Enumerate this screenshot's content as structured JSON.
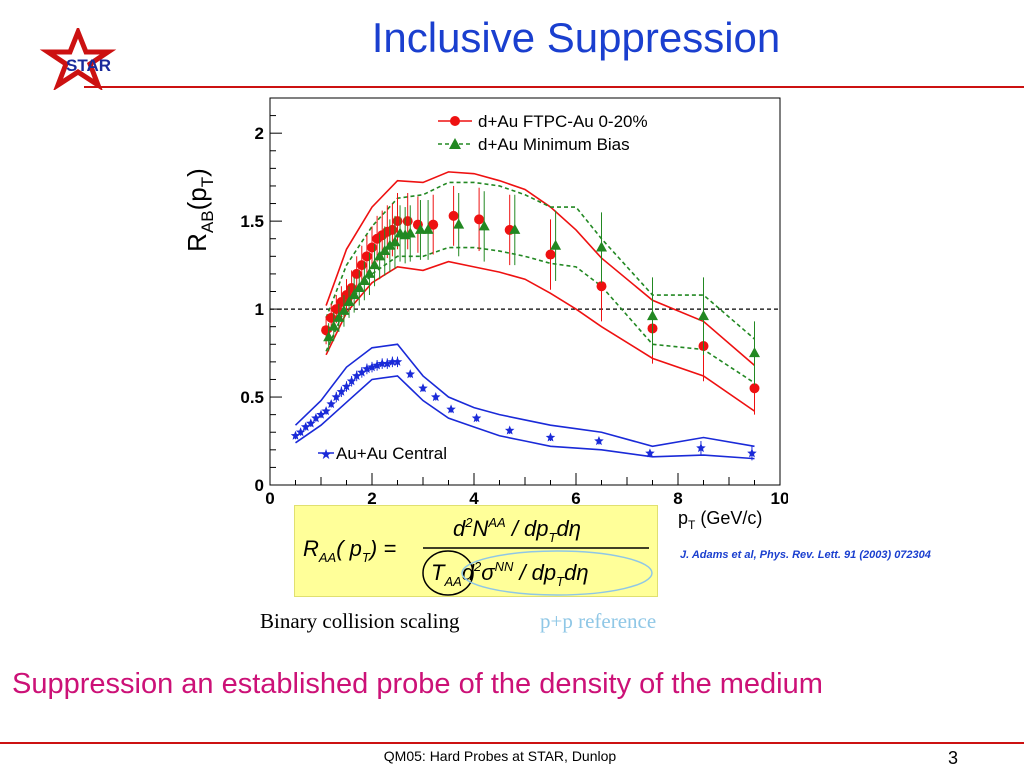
{
  "slide": {
    "title": "Inclusive Suppression",
    "logo_text": "STAR",
    "statement": "Suppression an established probe of the density of the medium",
    "binary_label": "Binary collision scaling",
    "pp_reference": "p+p reference",
    "citation": "J. Adams et al, Phys. Rev. Lett. 91 (2003) 072304",
    "footer": "QM05: Hard Probes at STAR, Dunlop",
    "page_number": "3"
  },
  "formula": {
    "lhs": "R",
    "lhs_sub": "AA",
    "lhs_arg": "( p",
    "lhs_arg_sub": "T",
    "lhs_close": ") =",
    "num_text": "d",
    "num_sup": "2",
    "num_n": "N",
    "num_n_sup": "AA",
    "num_rest": " / dp",
    "num_rest_sub": "T",
    "num_end": "dη",
    "den_t": "T",
    "den_t_sub": "AA",
    "den_d": "d",
    "den_d_sup": "2",
    "den_sigma": "σ",
    "den_sigma_sup": "NN",
    "den_rest": " / dp",
    "den_rest_sub": "T",
    "den_end": "dη"
  },
  "colors": {
    "title": "#1a3fcf",
    "accent_red": "#cc1111",
    "statement": "#cc1177",
    "dau_central": "#ee1111",
    "dau_minbias": "#228822",
    "auau": "#1a2ad8",
    "pp_reference": "#8fc7e6",
    "formula_bg": "#ffff99"
  },
  "chart_data": {
    "type": "scatter",
    "xlabel": "p",
    "xlabel_sub": "T",
    "xlabel_unit": " (GeV/c)",
    "ylabel": "R",
    "ylabel_sub": "AB",
    "ylabel_arg": "(p",
    "ylabel_arg_sub": "T",
    "ylabel_close": ")",
    "xlim": [
      0,
      10
    ],
    "ylim": [
      0,
      2.2
    ],
    "xticks": [
      "0",
      "2",
      "4",
      "6",
      "8",
      "10"
    ],
    "yticks": [
      "0",
      "0.5",
      "1",
      "1.5",
      "2"
    ],
    "reference_line": 1,
    "series": [
      {
        "name": "d+Au FTPC-Au 0-20%",
        "marker": "circle",
        "color": "#ee1111",
        "x": [
          1.1,
          1.2,
          1.3,
          1.4,
          1.5,
          1.6,
          1.7,
          1.8,
          1.9,
          2.0,
          2.1,
          2.2,
          2.3,
          2.4,
          2.5,
          2.7,
          2.9,
          3.2,
          3.6,
          4.1,
          4.7,
          5.5,
          6.5,
          7.5,
          8.5,
          9.5
        ],
        "y": [
          0.88,
          0.95,
          1.0,
          1.04,
          1.08,
          1.12,
          1.2,
          1.25,
          1.3,
          1.35,
          1.4,
          1.42,
          1.44,
          1.45,
          1.5,
          1.5,
          1.48,
          1.48,
          1.53,
          1.51,
          1.45,
          1.31,
          1.13,
          0.89,
          0.79,
          0.55
        ],
        "err": [
          0.08,
          0.08,
          0.08,
          0.09,
          0.09,
          0.1,
          0.1,
          0.11,
          0.12,
          0.12,
          0.13,
          0.14,
          0.15,
          0.15,
          0.16,
          0.16,
          0.16,
          0.17,
          0.17,
          0.18,
          0.2,
          0.2,
          0.2,
          0.2,
          0.2,
          0.15
        ]
      },
      {
        "name": "d+Au Minimum Bias",
        "marker": "triangle",
        "color": "#228822",
        "x": [
          1.15,
          1.25,
          1.35,
          1.45,
          1.55,
          1.65,
          1.75,
          1.85,
          1.95,
          2.05,
          2.15,
          2.25,
          2.35,
          2.45,
          2.55,
          2.65,
          2.75,
          2.95,
          3.1,
          3.7,
          4.2,
          4.8,
          5.6,
          6.5,
          7.5,
          8.5,
          9.5
        ],
        "y": [
          0.84,
          0.9,
          0.95,
          0.99,
          1.04,
          1.08,
          1.12,
          1.16,
          1.2,
          1.25,
          1.3,
          1.33,
          1.36,
          1.38,
          1.43,
          1.42,
          1.43,
          1.45,
          1.45,
          1.48,
          1.47,
          1.45,
          1.36,
          1.35,
          0.96,
          0.96,
          0.75
        ],
        "err": [
          0.08,
          0.08,
          0.08,
          0.09,
          0.09,
          0.1,
          0.1,
          0.11,
          0.12,
          0.12,
          0.13,
          0.14,
          0.15,
          0.15,
          0.16,
          0.16,
          0.16,
          0.17,
          0.17,
          0.18,
          0.2,
          0.2,
          0.2,
          0.2,
          0.22,
          0.22,
          0.18
        ]
      },
      {
        "name": "Au+Au Central",
        "marker": "star",
        "color": "#1a2ad8",
        "x": [
          0.5,
          0.6,
          0.7,
          0.8,
          0.9,
          1.0,
          1.1,
          1.2,
          1.3,
          1.4,
          1.5,
          1.6,
          1.7,
          1.8,
          1.9,
          2.0,
          2.1,
          2.2,
          2.3,
          2.4,
          2.5,
          2.75,
          3.0,
          3.25,
          3.55,
          4.05,
          4.7,
          5.5,
          6.45,
          7.45,
          8.45,
          9.45
        ],
        "y": [
          0.28,
          0.3,
          0.33,
          0.35,
          0.38,
          0.4,
          0.42,
          0.46,
          0.5,
          0.53,
          0.56,
          0.59,
          0.62,
          0.64,
          0.66,
          0.67,
          0.68,
          0.69,
          0.69,
          0.7,
          0.7,
          0.63,
          0.55,
          0.5,
          0.43,
          0.38,
          0.31,
          0.27,
          0.25,
          0.18,
          0.21,
          0.18
        ],
        "err": [
          0.02,
          0.02,
          0.02,
          0.02,
          0.02,
          0.02,
          0.02,
          0.02,
          0.03,
          0.03,
          0.03,
          0.03,
          0.03,
          0.03,
          0.03,
          0.03,
          0.03,
          0.03,
          0.03,
          0.03,
          0.03,
          0.02,
          0.02,
          0.02,
          0.02,
          0.02,
          0.02,
          0.02,
          0.02,
          0.02,
          0.04,
          0.04
        ]
      }
    ],
    "bands": [
      {
        "series": "d+Au FTPC-Au 0-20%",
        "style": "solid",
        "color": "#ee1111",
        "x": [
          1.1,
          1.5,
          2.0,
          2.5,
          3.0,
          3.5,
          4.0,
          4.5,
          5.0,
          5.5,
          6.0,
          6.5,
          7.5,
          8.5,
          9.5
        ],
        "upper": [
          1.02,
          1.34,
          1.58,
          1.73,
          1.72,
          1.78,
          1.77,
          1.73,
          1.68,
          1.58,
          1.45,
          1.29,
          1.05,
          0.93,
          0.68
        ],
        "lower": [
          0.74,
          0.98,
          1.15,
          1.24,
          1.22,
          1.27,
          1.24,
          1.21,
          1.17,
          1.09,
          1.0,
          0.9,
          0.72,
          0.62,
          0.42
        ]
      },
      {
        "series": "d+Au Minimum Bias",
        "style": "dashed",
        "color": "#228822",
        "x": [
          1.1,
          1.5,
          2.0,
          2.5,
          3.0,
          3.5,
          4.0,
          4.5,
          5.0,
          5.5,
          6.0,
          6.5,
          7.5,
          8.5,
          9.5
        ],
        "upper": [
          0.95,
          1.25,
          1.47,
          1.63,
          1.65,
          1.72,
          1.72,
          1.7,
          1.65,
          1.58,
          1.58,
          1.4,
          1.08,
          1.08,
          0.83
        ],
        "lower": [
          0.76,
          1.02,
          1.2,
          1.3,
          1.3,
          1.35,
          1.35,
          1.33,
          1.3,
          1.26,
          1.24,
          1.13,
          0.8,
          0.77,
          0.58
        ]
      },
      {
        "series": "Au+Au Central",
        "style": "solid",
        "color": "#1a2ad8",
        "x": [
          0.5,
          1.0,
          1.5,
          2.0,
          2.5,
          2.75,
          3.0,
          3.5,
          4.0,
          4.5,
          5.0,
          5.5,
          6.0,
          6.5,
          7.5,
          8.5,
          9.5
        ],
        "upper": [
          0.34,
          0.48,
          0.67,
          0.78,
          0.8,
          0.71,
          0.62,
          0.5,
          0.44,
          0.4,
          0.37,
          0.34,
          0.32,
          0.3,
          0.22,
          0.27,
          0.22
        ],
        "lower": [
          0.24,
          0.34,
          0.47,
          0.6,
          0.62,
          0.55,
          0.48,
          0.38,
          0.33,
          0.28,
          0.25,
          0.22,
          0.21,
          0.2,
          0.16,
          0.17,
          0.15
        ]
      }
    ],
    "legend": {
      "placement": "top-right",
      "entries": [
        "d+Au FTPC-Au 0-20%",
        "d+Au Minimum Bias"
      ],
      "secondary_placement": "bottom-left",
      "secondary_entries": [
        "Au+Au Central"
      ]
    }
  }
}
